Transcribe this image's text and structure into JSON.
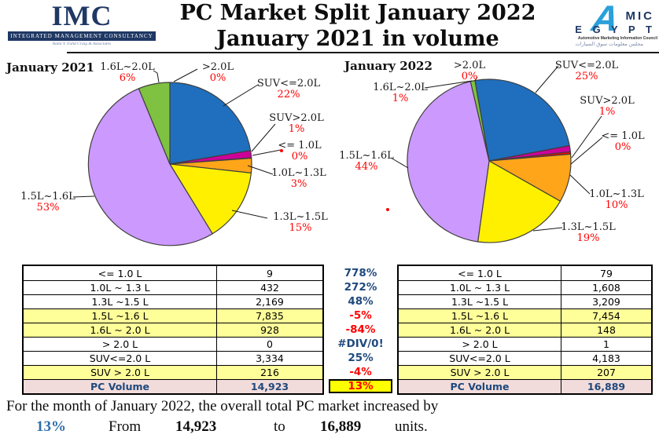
{
  "header": {
    "imc_acronym": "IMC",
    "imc_banner": "Integrated Management Consultancy",
    "imc_tagline": "Rami Y. Fahd Craig & Associates",
    "title_line1": "PC Market Split January 2022",
    "title_line2": "January 2021 in volume",
    "amic_a": "A",
    "amic_mic": "MIC",
    "amic_egypt": "E G Y P T",
    "amic_tagline": "Automotive Marketing Information Council",
    "amic_arabic": "مجلس معلومات سوق السيارات"
  },
  "colors": {
    "navy_text": "#1F497D",
    "red_text": "#FF0000",
    "band_yellow": "#FFFF99",
    "band_pink": "#F2DCDB",
    "total_cell_yellow": "#FFFF00",
    "footer_blue": "#2E6DA8",
    "logo_navy": "#1F3864",
    "logo_blue": "#2AA0DB",
    "slice_blue": "#1F6FBE",
    "slice_magenta": "#CC0099",
    "slice_orange": "#FFA519",
    "slice_yellow": "#FFF000",
    "slice_purple": "#CC99FF",
    "slice_green": "#7FC241"
  },
  "chart_data": [
    {
      "type": "pie",
      "title": "January 2021",
      "legend_position": "callout-labels",
      "categories": [
        ">2.0L",
        "SUV<=2.0L",
        "SUV>2.0L",
        "<= 1.0L",
        "1.0L~1.3L",
        "1.3L~1.5L",
        "1.5L~1.6L",
        "1.6L~2.0L"
      ],
      "values": [
        0,
        3334,
        216,
        9,
        432,
        2169,
        7835,
        928
      ],
      "pct_labels": [
        "0%",
        "22%",
        "1%",
        "0%",
        "3%",
        "15%",
        "53%",
        "6%"
      ],
      "colors": [
        "#B0B0B0",
        "#1F6FBE",
        "#CC0099",
        "#FF0000",
        "#FFA519",
        "#FFF000",
        "#CC99FF",
        "#7FC241"
      ]
    },
    {
      "type": "pie",
      "title": "January 2022",
      "legend_position": "callout-labels",
      "categories": [
        ">2.0L",
        "SUV<=2.0L",
        "SUV>2.0L",
        "<= 1.0L",
        "1.0L~1.3L",
        "1.3L~1.5L",
        "1.5L~1.6L",
        "1.6L~2.0L"
      ],
      "values": [
        1,
        4183,
        207,
        79,
        1608,
        3209,
        7454,
        148
      ],
      "pct_labels": [
        "0%",
        "25%",
        "1%",
        "0%",
        "10%",
        "19%",
        "44%",
        "1%"
      ],
      "colors": [
        "#B0B0B0",
        "#1F6FBE",
        "#CC0099",
        "#FF0000",
        "#FFA519",
        "#FFF000",
        "#CC99FF",
        "#7FC241"
      ]
    }
  ],
  "table": {
    "rows": [
      {
        "label": "<= 1.0 L",
        "v2021": "9",
        "pct": "778%",
        "trend": "pos",
        "v2022": "79",
        "band": "white"
      },
      {
        "label": "1.0L ~ 1.3 L",
        "v2021": "432",
        "pct": "272%",
        "trend": "pos",
        "v2022": "1,608",
        "band": "white"
      },
      {
        "label": "1.3L ~1.5 L",
        "v2021": "2,169",
        "pct": "48%",
        "trend": "pos",
        "v2022": "3,209",
        "band": "white"
      },
      {
        "label": "1.5L ~1.6 L",
        "v2021": "7,835",
        "pct": "-5%",
        "trend": "neg",
        "v2022": "7,454",
        "band": "yellow"
      },
      {
        "label": "1.6L ~ 2.0 L",
        "v2021": "928",
        "pct": "-84%",
        "trend": "neg",
        "v2022": "148",
        "band": "yellow"
      },
      {
        "label": "> 2.0 L",
        "v2021": "0",
        "pct": "#DIV/0!",
        "trend": "pos",
        "v2022": "1",
        "band": "white"
      },
      {
        "label": "SUV<=2.0 L",
        "v2021": "3,334",
        "pct": "25%",
        "trend": "pos",
        "v2022": "4,183",
        "band": "white"
      },
      {
        "label": "SUV > 2.0 L",
        "v2021": "216",
        "pct": "-4%",
        "trend": "neg",
        "v2022": "207",
        "band": "yellow"
      },
      {
        "label": "PC Volume",
        "v2021": "14,923",
        "pct": "13%",
        "trend": "total",
        "v2022": "16,889",
        "band": "pink"
      }
    ]
  },
  "footer": {
    "line1": "For the month of January 2022, the overall total PC market increased by",
    "highlight_pct": "13%",
    "word_from": "From",
    "value_from": "14,923",
    "word_to": "to",
    "value_to": "16,889",
    "word_units": "units."
  }
}
